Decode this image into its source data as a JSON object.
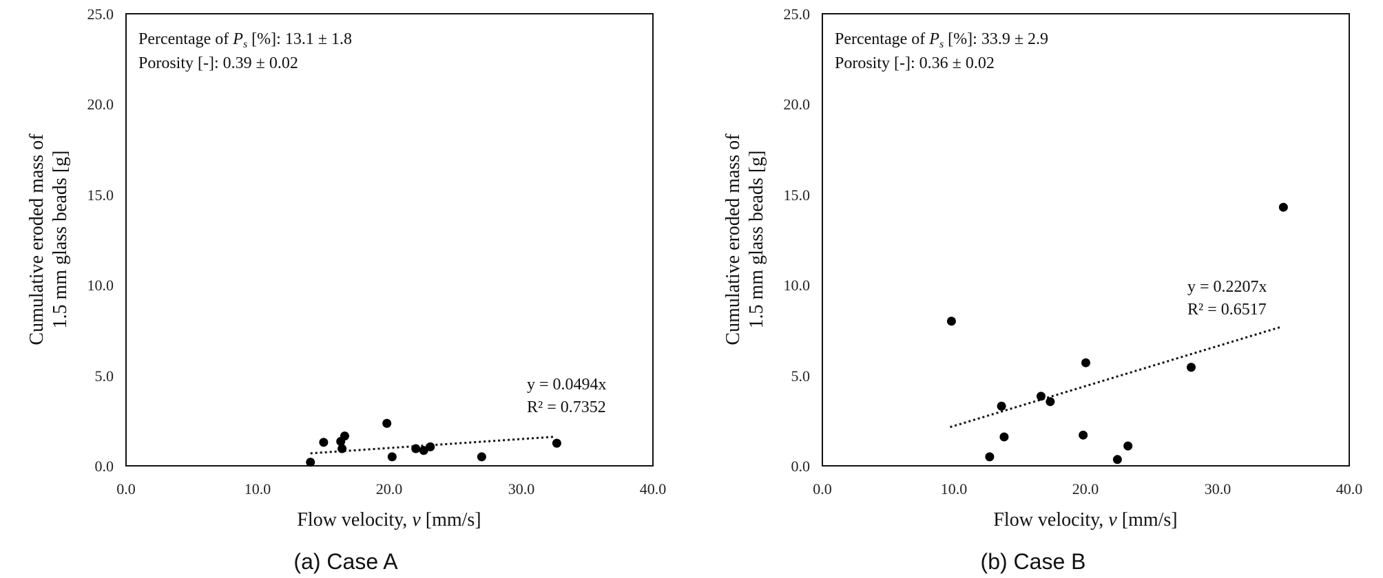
{
  "chart_data": [
    {
      "type": "scatter",
      "caption": "(a) Case A",
      "xlabel": "Flow velocity, ",
      "xlabel_var": "v",
      "xlabel_unit": " [mm/s]",
      "ylabel_line1": "Cumulative eroded  mass of",
      "ylabel_line2": "1.5 mm glass beads [g]",
      "xlim": [
        0,
        40
      ],
      "ylim": [
        0,
        25
      ],
      "xticks": [
        "0.0",
        "10.0",
        "20.0",
        "30.0",
        "40.0"
      ],
      "yticks": [
        "0.0",
        "5.0",
        "10.0",
        "15.0",
        "20.0",
        "25.0"
      ],
      "legend_prefix": "Percentage of ",
      "legend_var": "P",
      "legend_sub": "s",
      "legend_rest": " [%]: 13.1 ± 1.8",
      "porosity": "Porosity [-]: 0.39 ± 0.02",
      "trend_eq": "y = 0.0494x",
      "trend_r2": "R² = 0.7352",
      "trend_slope": 0.0494,
      "trend_x": [
        14.0,
        32.6
      ],
      "points": [
        {
          "x": 14.0,
          "y": 0.2
        },
        {
          "x": 15.0,
          "y": 1.3
        },
        {
          "x": 16.3,
          "y": 1.35
        },
        {
          "x": 16.4,
          "y": 0.95
        },
        {
          "x": 16.6,
          "y": 1.65
        },
        {
          "x": 19.8,
          "y": 2.35
        },
        {
          "x": 20.2,
          "y": 0.5
        },
        {
          "x": 22.0,
          "y": 0.95
        },
        {
          "x": 22.6,
          "y": 0.85
        },
        {
          "x": 23.1,
          "y": 1.05
        },
        {
          "x": 27.0,
          "y": 0.5
        },
        {
          "x": 32.7,
          "y": 1.25
        }
      ]
    },
    {
      "type": "scatter",
      "caption": "(b) Case B",
      "xlabel": "Flow velocity, ",
      "xlabel_var": "v",
      "xlabel_unit": " [mm/s]",
      "ylabel_line1": "Cumulative eroded  mass of",
      "ylabel_line2": "1.5 mm glass beads [g]",
      "xlim": [
        0,
        40
      ],
      "ylim": [
        0,
        25
      ],
      "xticks": [
        "0.0",
        "10.0",
        "20.0",
        "30.0",
        "40.0"
      ],
      "yticks": [
        "0.0",
        "5.0",
        "10.0",
        "15.0",
        "20.0",
        "25.0"
      ],
      "legend_prefix": "Percentage of ",
      "legend_var": "P",
      "legend_sub": "s",
      "legend_rest": " [%]: 33.9 ± 2.9",
      "porosity": "Porosity [-]: 0.36 ± 0.02",
      "trend_eq": "y = 0.2207x",
      "trend_r2": "R² = 0.6517",
      "trend_slope": 0.2207,
      "trend_x": [
        9.7,
        34.8
      ],
      "points": [
        {
          "x": 9.8,
          "y": 8.0
        },
        {
          "x": 12.7,
          "y": 0.5
        },
        {
          "x": 13.6,
          "y": 3.3
        },
        {
          "x": 13.8,
          "y": 1.6
        },
        {
          "x": 16.6,
          "y": 3.85
        },
        {
          "x": 17.3,
          "y": 3.55
        },
        {
          "x": 19.8,
          "y": 1.7
        },
        {
          "x": 20.0,
          "y": 5.7
        },
        {
          "x": 22.4,
          "y": 0.35
        },
        {
          "x": 23.2,
          "y": 1.1
        },
        {
          "x": 28.0,
          "y": 5.45
        },
        {
          "x": 35.0,
          "y": 14.3
        }
      ]
    }
  ]
}
